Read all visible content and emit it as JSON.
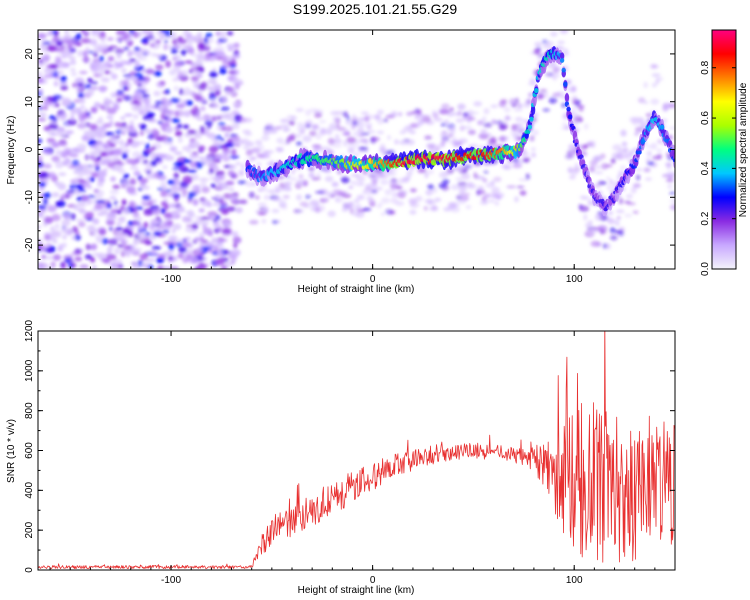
{
  "page": {
    "title": "S199.2025.101.21.55.G29"
  },
  "chart_data": [
    {
      "type": "heatmap",
      "xlabel": "Height of straight line (km)",
      "ylabel": "Frequency (Hz)",
      "xlim": [
        -166,
        150
      ],
      "ylim": [
        -25,
        25
      ],
      "xticks": [
        -100,
        0,
        100
      ],
      "yticks": [
        -20,
        -10,
        0,
        10,
        20
      ],
      "colorbar": {
        "label": "Normalized spectral amplitude",
        "range": [
          0,
          0.95
        ],
        "ticks": [
          0.0,
          0.2,
          0.4,
          0.6,
          0.8
        ],
        "colors": [
          "#f4f4fb",
          "#c8a8ff",
          "#8a2be2",
          "#0000ff",
          "#00c8ff",
          "#00ff80",
          "#aaff00",
          "#ffff00",
          "#ff8000",
          "#ff0000",
          "#ff0080"
        ]
      },
      "ridge": {
        "x": [
          -62,
          -55,
          -45,
          -35,
          -25,
          -15,
          -5,
          5,
          15,
          25,
          35,
          45,
          55,
          65,
          73,
          78,
          82,
          86,
          90,
          94,
          97,
          100,
          105,
          110,
          115,
          120,
          125,
          130,
          135,
          140,
          145,
          150
        ],
        "y": [
          -4,
          -6,
          -4,
          -2,
          -2,
          -3,
          -3,
          -3,
          -2.5,
          -2,
          -2,
          -1.5,
          -1,
          -0.7,
          0,
          5,
          15,
          19,
          20,
          19,
          8,
          3,
          -4,
          -10,
          -12,
          -10,
          -6,
          -3,
          3,
          7,
          3,
          -2
        ],
        "amplitude": [
          0.25,
          0.3,
          0.35,
          0.4,
          0.45,
          0.5,
          0.6,
          0.7,
          0.85,
          0.85,
          0.85,
          0.8,
          0.8,
          0.7,
          0.5,
          0.35,
          0.35,
          0.4,
          0.35,
          0.3,
          0.25,
          0.22,
          0.2,
          0.2,
          0.2,
          0.2,
          0.22,
          0.25,
          0.3,
          0.35,
          0.3,
          0.25
        ]
      }
    },
    {
      "type": "line",
      "xlabel": "Height of straight line (km)",
      "ylabel": "SNR (10 * v/v)",
      "xlim": [
        -166,
        150
      ],
      "ylim": [
        0,
        1200
      ],
      "xticks": [
        -100,
        0,
        100
      ],
      "yticks": [
        0,
        200,
        400,
        600,
        800,
        1000,
        1200
      ],
      "series": [
        {
          "color": "#e83030",
          "envelope": {
            "x": [
              -166,
              -120,
              -80,
              -60,
              -55,
              -50,
              -40,
              -30,
              -20,
              -10,
              0,
              10,
              20,
              30,
              40,
              50,
              60,
              70,
              80,
              85,
              90,
              95,
              100,
              105,
              110,
              115,
              120,
              130,
              140,
              150
            ],
            "mean": [
              15,
              15,
              15,
              15,
              120,
              200,
              250,
              300,
              350,
              420,
              470,
              520,
              550,
              580,
              590,
              600,
              590,
              580,
              560,
              520,
              480,
              460,
              450,
              440,
              430,
              420,
              420,
              410,
              420,
              430
            ],
            "spread": [
              8,
              8,
              8,
              8,
              60,
              80,
              80,
              80,
              80,
              80,
              70,
              60,
              50,
              50,
              40,
              40,
              40,
              40,
              60,
              120,
              200,
              280,
              360,
              420,
              420,
              400,
              380,
              380,
              350,
              300
            ]
          }
        }
      ]
    }
  ]
}
